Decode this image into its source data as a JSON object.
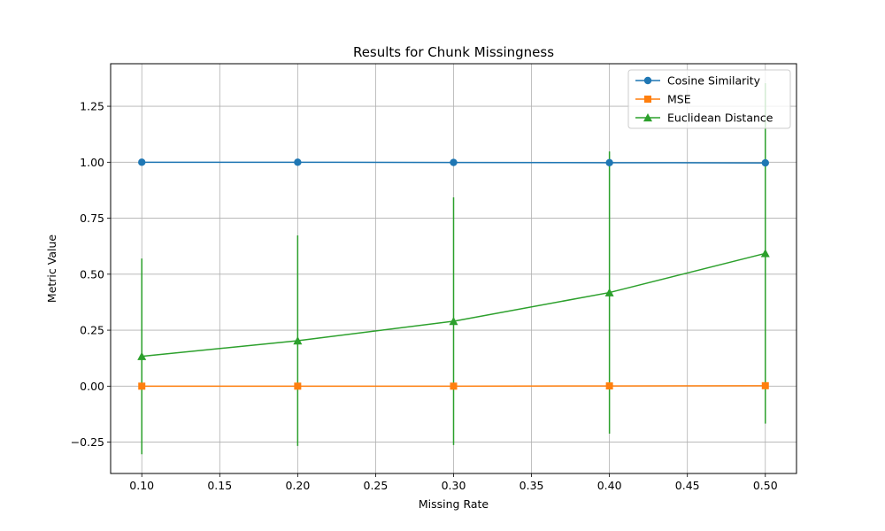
{
  "chart_data": {
    "type": "line",
    "title": "Results for Chunk Missingness",
    "xlabel": "Missing Rate",
    "ylabel": "Metric Value",
    "x": [
      0.1,
      0.2,
      0.3,
      0.4,
      0.5
    ],
    "xlim": [
      0.08,
      0.52
    ],
    "ylim": [
      -0.39,
      1.44
    ],
    "xticks": [
      0.1,
      0.15,
      0.2,
      0.25,
      0.3,
      0.35,
      0.4,
      0.45,
      0.5
    ],
    "xtick_labels": [
      "0.10",
      "0.15",
      "0.20",
      "0.25",
      "0.30",
      "0.35",
      "0.40",
      "0.45",
      "0.50"
    ],
    "yticks": [
      -0.25,
      0.0,
      0.25,
      0.5,
      0.75,
      1.0,
      1.25
    ],
    "ytick_labels": [
      "−0.25",
      "0.00",
      "0.25",
      "0.50",
      "0.75",
      "1.00",
      "1.25"
    ],
    "grid": true,
    "legend_position": "top-right",
    "series": [
      {
        "name": "Cosine Similarity",
        "color": "#1f77b4",
        "marker": "circle",
        "values": [
          1.0,
          1.0,
          0.999,
          0.998,
          0.997
        ],
        "errors": [
          0.0,
          0.0,
          0.001,
          0.001,
          0.002
        ]
      },
      {
        "name": "MSE",
        "color": "#ff7f0e",
        "marker": "square",
        "values": [
          0.0,
          0.0,
          0.0,
          0.001,
          0.002
        ],
        "errors": [
          0.0,
          0.0,
          0.0,
          0.001,
          0.002
        ]
      },
      {
        "name": "Euclidean Distance",
        "color": "#2ca02c",
        "marker": "triangle",
        "values": [
          0.133,
          0.203,
          0.29,
          0.418,
          0.593
        ],
        "errors": [
          0.437,
          0.47,
          0.553,
          0.63,
          0.76
        ]
      }
    ]
  }
}
